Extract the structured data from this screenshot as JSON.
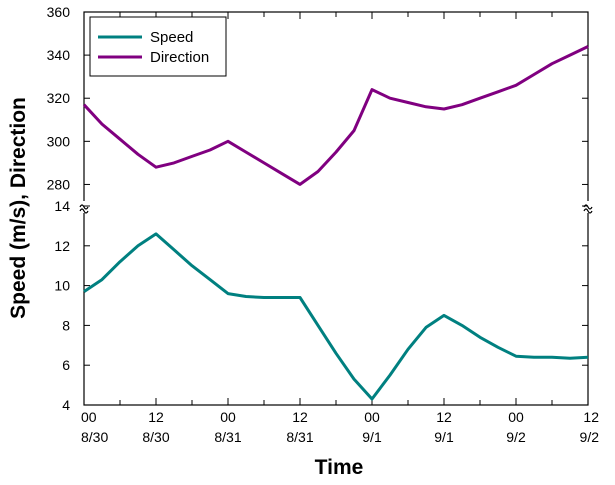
{
  "chart_data": {
    "type": "line",
    "xlabel": "Time",
    "ylabel": "Speed (m/s), Direction",
    "grid": false,
    "legend_position": "top-left",
    "x_tick_labels": [
      [
        "00",
        "8/30"
      ],
      [
        "12",
        "8/30"
      ],
      [
        "00",
        "8/31"
      ],
      [
        "12",
        "8/31"
      ],
      [
        "00",
        "9/1"
      ],
      [
        "12",
        "9/1"
      ],
      [
        "00",
        "9/2"
      ],
      [
        "12",
        "9/2"
      ]
    ],
    "x_range_hours": [
      0,
      84
    ],
    "axis_break": true,
    "upper_panel": {
      "ylim": [
        270,
        360
      ],
      "yticks": [
        "280",
        "300",
        "320",
        "340",
        "360"
      ]
    },
    "lower_panel": {
      "ylim": [
        4,
        14
      ],
      "yticks": [
        "4",
        "6",
        "8",
        "10",
        "12",
        "14"
      ]
    },
    "series": [
      {
        "name": "Speed",
        "color": "#008080",
        "panel": "lower",
        "points": [
          [
            0,
            9.7
          ],
          [
            3,
            10.3
          ],
          [
            6,
            11.2
          ],
          [
            9,
            12.0
          ],
          [
            12,
            12.6
          ],
          [
            15,
            11.8
          ],
          [
            18,
            11.0
          ],
          [
            21,
            10.3
          ],
          [
            24,
            9.6
          ],
          [
            27,
            9.45
          ],
          [
            30,
            9.4
          ],
          [
            33,
            9.4
          ],
          [
            36,
            9.4
          ],
          [
            39,
            8.0
          ],
          [
            42,
            6.6
          ],
          [
            45,
            5.3
          ],
          [
            48,
            4.3
          ],
          [
            51,
            5.5
          ],
          [
            54,
            6.8
          ],
          [
            57,
            7.9
          ],
          [
            60,
            8.5
          ],
          [
            63,
            8.0
          ],
          [
            66,
            7.4
          ],
          [
            69,
            6.9
          ],
          [
            72,
            6.45
          ],
          [
            75,
            6.4
          ],
          [
            78,
            6.4
          ],
          [
            81,
            6.35
          ],
          [
            84,
            6.4
          ]
        ]
      },
      {
        "name": "Direction",
        "color": "#800080",
        "panel": "upper",
        "points": [
          [
            0,
            317
          ],
          [
            3,
            308
          ],
          [
            6,
            301
          ],
          [
            9,
            294
          ],
          [
            12,
            288
          ],
          [
            15,
            290
          ],
          [
            18,
            293
          ],
          [
            21,
            296
          ],
          [
            24,
            300
          ],
          [
            27,
            295
          ],
          [
            30,
            290
          ],
          [
            33,
            285
          ],
          [
            36,
            280
          ],
          [
            39,
            286
          ],
          [
            42,
            295
          ],
          [
            45,
            305
          ],
          [
            48,
            324
          ],
          [
            51,
            320
          ],
          [
            54,
            318
          ],
          [
            57,
            316
          ],
          [
            60,
            315
          ],
          [
            63,
            317
          ],
          [
            66,
            320
          ],
          [
            69,
            323
          ],
          [
            72,
            326
          ],
          [
            75,
            331
          ],
          [
            78,
            336
          ],
          [
            81,
            340
          ],
          [
            84,
            344
          ]
        ]
      }
    ]
  }
}
